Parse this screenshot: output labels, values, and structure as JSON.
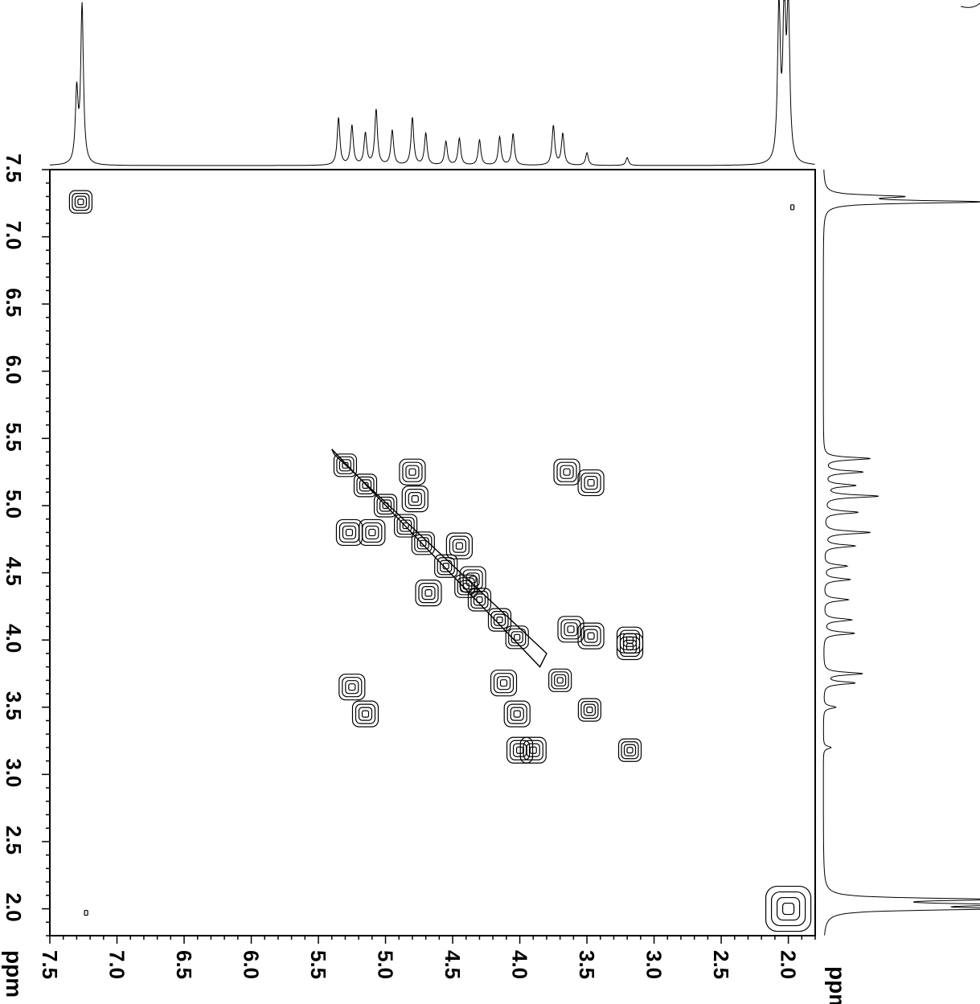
{
  "chart_data": {
    "type": "contour",
    "axes": {
      "x": {
        "label": "ppm",
        "range": [
          7.5,
          1.8
        ],
        "ticks": [
          "7.5",
          "7.0",
          "6.5",
          "6.0",
          "5.5",
          "5.0",
          "4.5",
          "4.0",
          "3.5",
          "3.0",
          "2.5",
          "2.0"
        ]
      },
      "y": {
        "label": "ppm",
        "range": [
          7.5,
          1.8
        ],
        "ticks": [
          "7.5",
          "7.0",
          "6.5",
          "6.0",
          "5.5",
          "5.0",
          "4.5",
          "4.0",
          "3.5",
          "3.0",
          "2.5",
          "2.0"
        ]
      }
    },
    "grid": false,
    "diagonal_peaks": [
      {
        "x": 7.27,
        "y": 7.26
      },
      {
        "x": 5.3,
        "y": 5.3
      },
      {
        "x": 5.15,
        "y": 5.15
      },
      {
        "x": 5.0,
        "y": 5.0
      },
      {
        "x": 4.85,
        "y": 4.85
      },
      {
        "x": 4.72,
        "y": 4.72
      },
      {
        "x": 4.55,
        "y": 4.55
      },
      {
        "x": 4.4,
        "y": 4.4
      },
      {
        "x": 4.3,
        "y": 4.3
      },
      {
        "x": 4.15,
        "y": 4.15
      },
      {
        "x": 4.02,
        "y": 4.02
      },
      {
        "x": 3.7,
        "y": 3.7
      },
      {
        "x": 3.48,
        "y": 3.48
      },
      {
        "x": 3.18,
        "y": 3.18
      },
      {
        "x": 2.0,
        "y": 2.0
      }
    ],
    "cross_peaks": [
      {
        "x": 5.27,
        "y": 4.8
      },
      {
        "x": 5.25,
        "y": 3.65
      },
      {
        "x": 5.15,
        "y": 3.45
      },
      {
        "x": 5.1,
        "y": 4.8
      },
      {
        "x": 4.8,
        "y": 5.25
      },
      {
        "x": 4.78,
        "y": 5.05
      },
      {
        "x": 4.68,
        "y": 4.35
      },
      {
        "x": 4.45,
        "y": 4.7
      },
      {
        "x": 4.35,
        "y": 4.45
      },
      {
        "x": 4.12,
        "y": 3.68
      },
      {
        "x": 4.02,
        "y": 3.45
      },
      {
        "x": 4.0,
        "y": 3.18
      },
      {
        "x": 3.9,
        "y": 3.18
      },
      {
        "x": 3.65,
        "y": 5.25
      },
      {
        "x": 3.62,
        "y": 4.08
      },
      {
        "x": 3.47,
        "y": 5.17
      },
      {
        "x": 3.47,
        "y": 4.03
      },
      {
        "x": 3.18,
        "y": 4.0
      },
      {
        "x": 3.18,
        "y": 3.95
      },
      {
        "x": 1.97,
        "y": 7.22
      },
      {
        "x": 7.23,
        "y": 1.97
      }
    ],
    "projection_1d": {
      "peaks": [
        {
          "ppm": 7.26,
          "intensity": 1.0
        },
        {
          "ppm": 7.3,
          "intensity": 0.45
        },
        {
          "ppm": 5.35,
          "intensity": 0.3
        },
        {
          "ppm": 5.25,
          "intensity": 0.25
        },
        {
          "ppm": 5.15,
          "intensity": 0.2
        },
        {
          "ppm": 5.07,
          "intensity": 0.35
        },
        {
          "ppm": 4.95,
          "intensity": 0.22
        },
        {
          "ppm": 4.8,
          "intensity": 0.3
        },
        {
          "ppm": 4.7,
          "intensity": 0.2
        },
        {
          "ppm": 4.55,
          "intensity": 0.15
        },
        {
          "ppm": 4.45,
          "intensity": 0.17
        },
        {
          "ppm": 4.3,
          "intensity": 0.16
        },
        {
          "ppm": 4.15,
          "intensity": 0.18
        },
        {
          "ppm": 4.05,
          "intensity": 0.2
        },
        {
          "ppm": 3.75,
          "intensity": 0.25
        },
        {
          "ppm": 3.68,
          "intensity": 0.2
        },
        {
          "ppm": 3.5,
          "intensity": 0.08
        },
        {
          "ppm": 3.2,
          "intensity": 0.05
        },
        {
          "ppm": 2.07,
          "intensity": 1.0
        },
        {
          "ppm": 2.03,
          "intensity": 1.0
        },
        {
          "ppm": 2.0,
          "intensity": 1.0
        }
      ]
    }
  }
}
